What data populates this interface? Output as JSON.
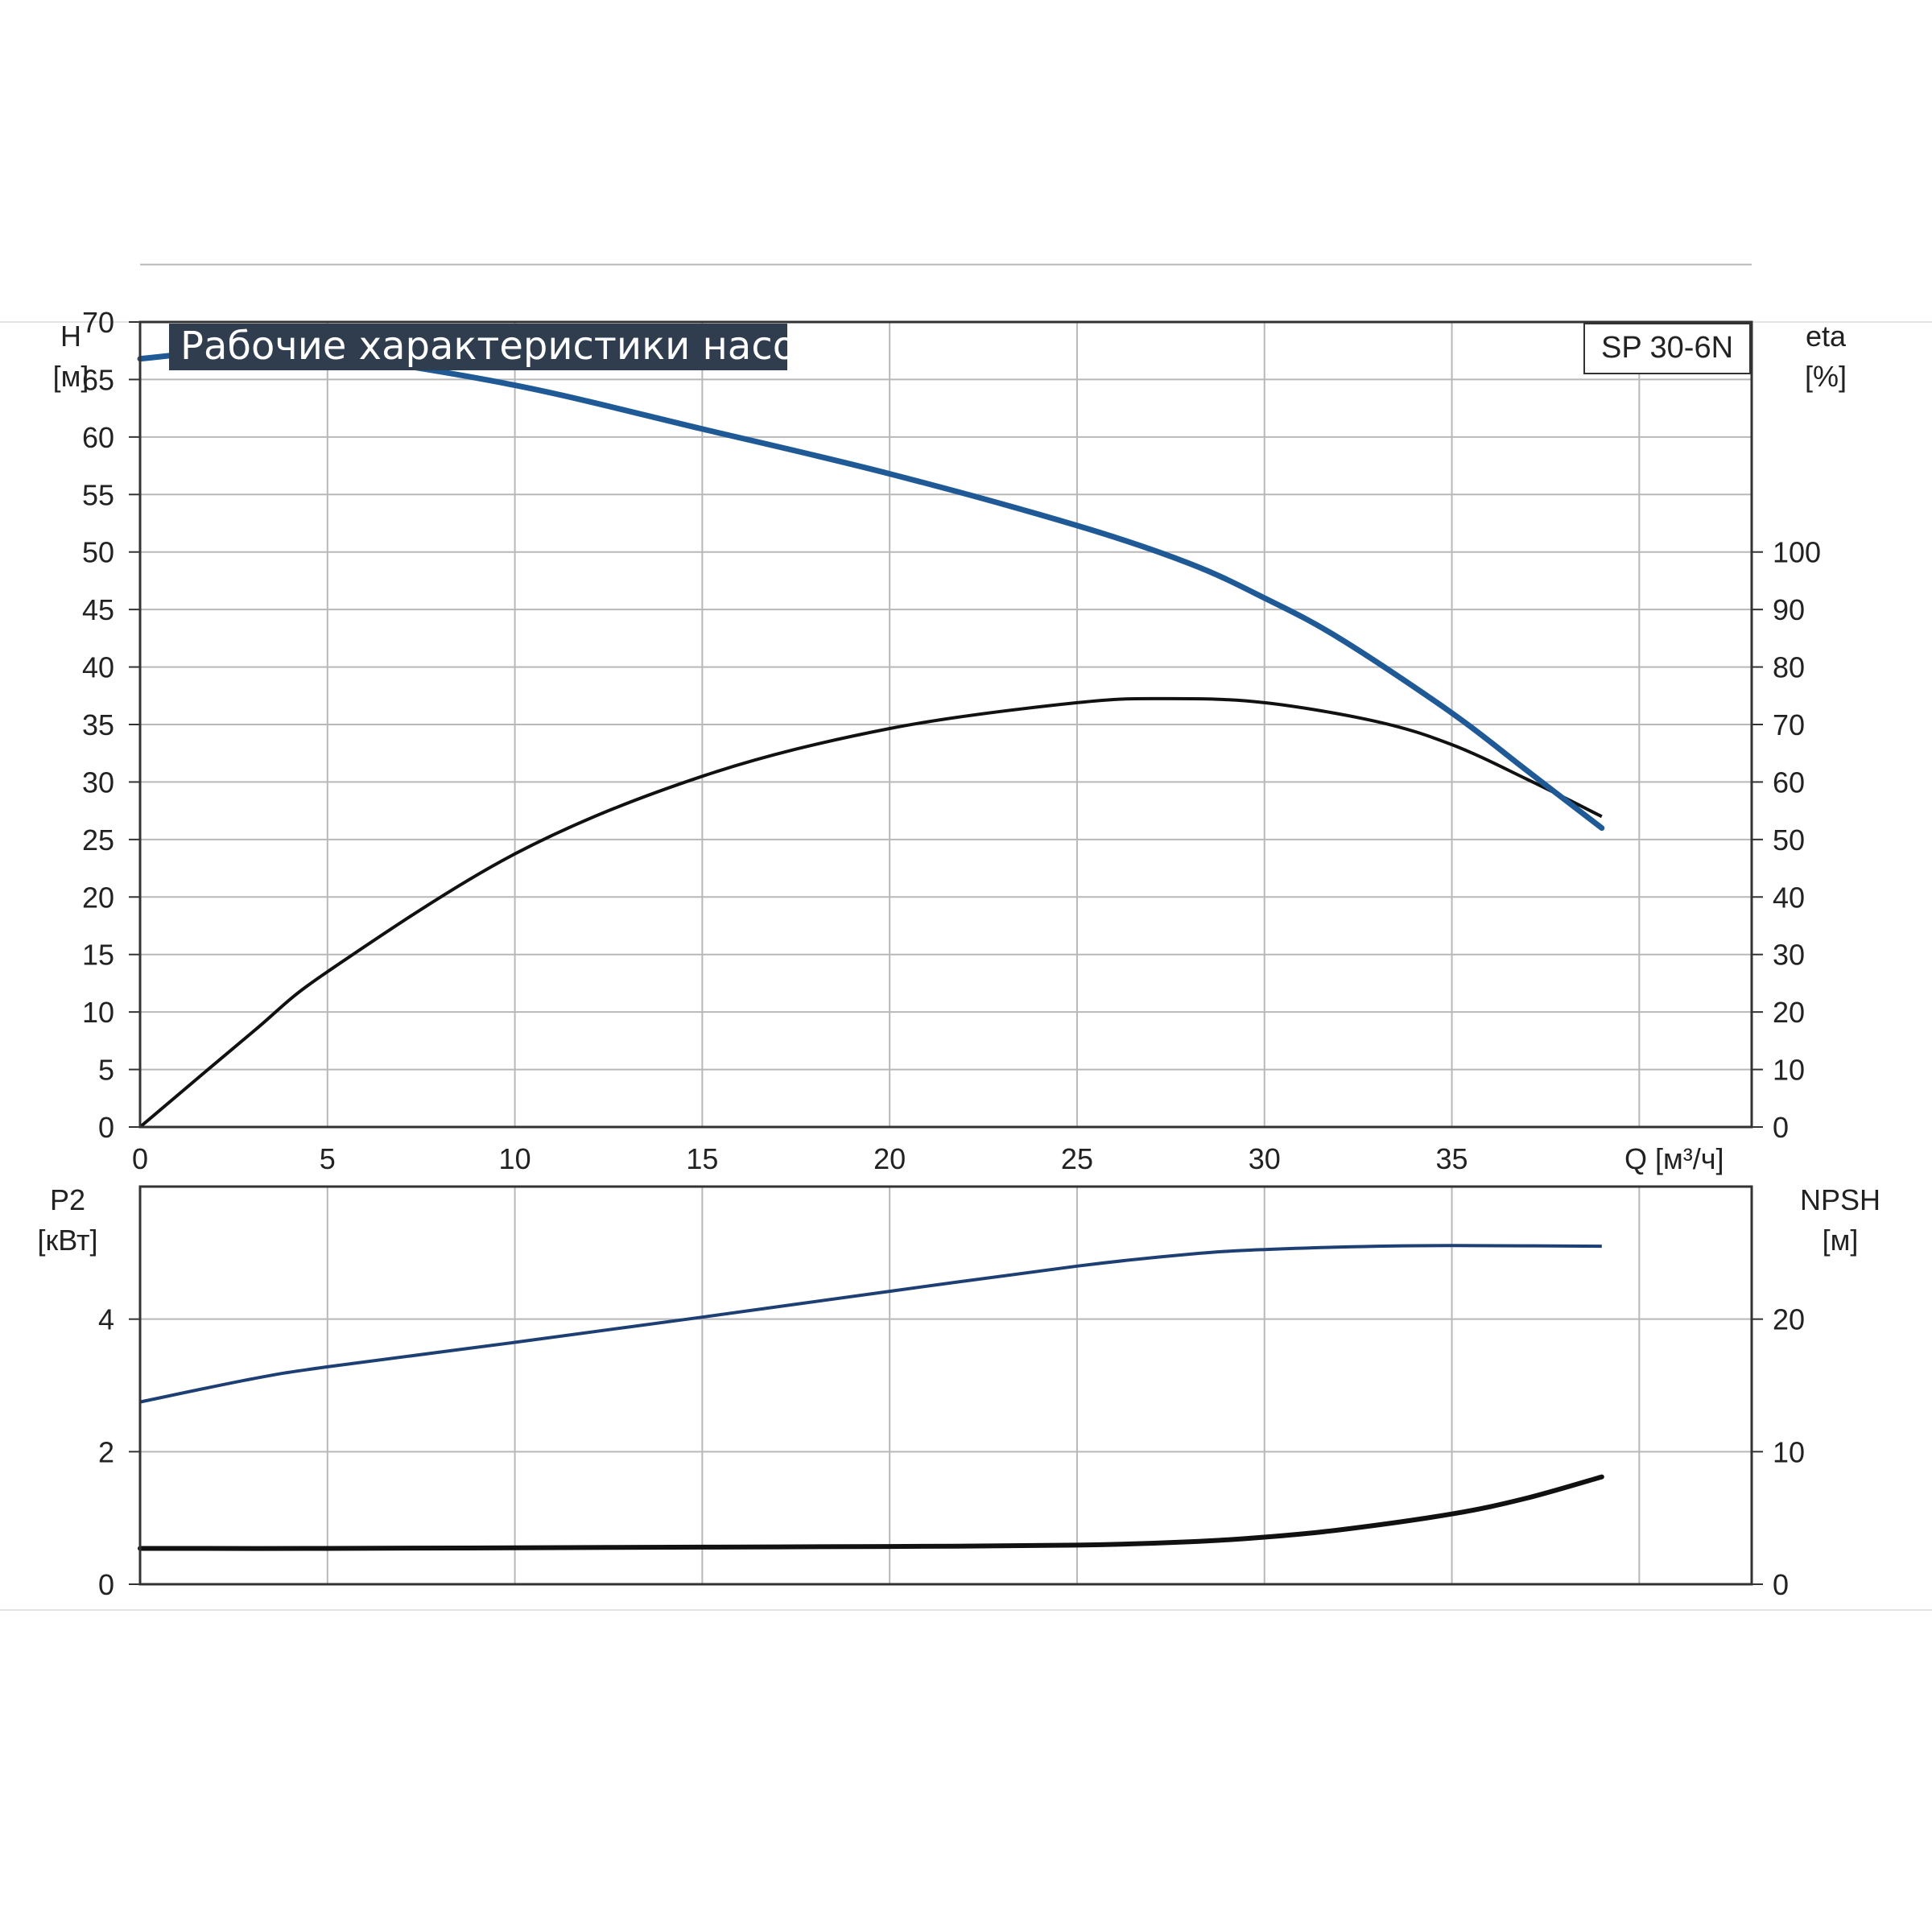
{
  "title": "Рабочие характеристики насоса",
  "model": "SP 30-6N",
  "colors": {
    "title_bg": "#2f3d4f",
    "head_curve": "#1f5a96",
    "eff_curve": "#111111",
    "p2_curve": "#1d3f73",
    "npsh_curve": "#111111",
    "grid": "#b8b8b8",
    "frame": "#333333"
  },
  "chart_data": [
    {
      "type": "line",
      "title": "Рабочие характеристики насоса",
      "xlabel": "Q [м³/ч]",
      "x_ticks": [
        "0",
        "5",
        "10",
        "15",
        "20",
        "25",
        "30",
        "35"
      ],
      "xlim": [
        0,
        43
      ],
      "left_axis": {
        "label_top": "H",
        "label_unit": "[м]",
        "ylim": [
          0,
          70
        ],
        "ticks": [
          "0",
          "5",
          "10",
          "15",
          "20",
          "25",
          "30",
          "35",
          "40",
          "45",
          "50",
          "55",
          "60",
          "65",
          "70"
        ]
      },
      "right_axis": {
        "label_top": "eta",
        "label_unit": "[%]",
        "ylim": [
          0,
          140
        ],
        "ticks": [
          "0",
          "10",
          "20",
          "30",
          "40",
          "50",
          "60",
          "70",
          "80",
          "90",
          "100"
        ]
      },
      "grid": true,
      "series": [
        {
          "axis": "left",
          "points": [
            [
              0,
              66.8
            ],
            [
              3,
              67.7
            ],
            [
              5,
              67.2
            ],
            [
              10,
              64.5
            ],
            [
              15,
              60.7
            ],
            [
              20,
              56.8
            ],
            [
              25,
              52.3
            ],
            [
              28,
              49
            ],
            [
              30,
              46
            ],
            [
              32,
              42.5
            ],
            [
              35,
              36
            ],
            [
              37,
              31
            ],
            [
              39,
              26
            ]
          ]
        },
        {
          "axis": "right",
          "points": [
            [
              0,
              0
            ],
            [
              3,
              16.5
            ],
            [
              5,
              27
            ],
            [
              10,
              47.5
            ],
            [
              15,
              61
            ],
            [
              20,
              69.3
            ],
            [
              25,
              73.8
            ],
            [
              27.5,
              74.5
            ],
            [
              30,
              73.8
            ],
            [
              33,
              70.5
            ],
            [
              35,
              66.5
            ],
            [
              37,
              60.5
            ],
            [
              39,
              54
            ]
          ]
        }
      ]
    },
    {
      "type": "line",
      "xlim": [
        0,
        43
      ],
      "left_axis": {
        "label_top": "P2",
        "label_unit": "[кВт]",
        "ylim": [
          0,
          6
        ],
        "ticks": [
          "0",
          "2",
          "4"
        ]
      },
      "right_axis": {
        "label_top": "NPSH",
        "label_unit": "[м]",
        "ylim": [
          0,
          30
        ],
        "ticks": [
          "0",
          "10",
          "20"
        ]
      },
      "grid": true,
      "series": [
        {
          "axis": "left",
          "points": [
            [
              0,
              2.75
            ],
            [
              3,
              3.1
            ],
            [
              5,
              3.28
            ],
            [
              10,
              3.65
            ],
            [
              15,
              4.03
            ],
            [
              20,
              4.42
            ],
            [
              25,
              4.8
            ],
            [
              28,
              4.98
            ],
            [
              30,
              5.05
            ],
            [
              33,
              5.1
            ],
            [
              35,
              5.11
            ],
            [
              39,
              5.1
            ]
          ]
        },
        {
          "axis": "right",
          "points": [
            [
              0,
              2.7
            ],
            [
              5,
              2.7
            ],
            [
              10,
              2.75
            ],
            [
              15,
              2.8
            ],
            [
              20,
              2.85
            ],
            [
              25,
              2.95
            ],
            [
              28,
              3.2
            ],
            [
              30,
              3.55
            ],
            [
              32,
              4.1
            ],
            [
              35,
              5.3
            ],
            [
              37,
              6.5
            ],
            [
              39,
              8.1
            ]
          ]
        }
      ]
    }
  ]
}
